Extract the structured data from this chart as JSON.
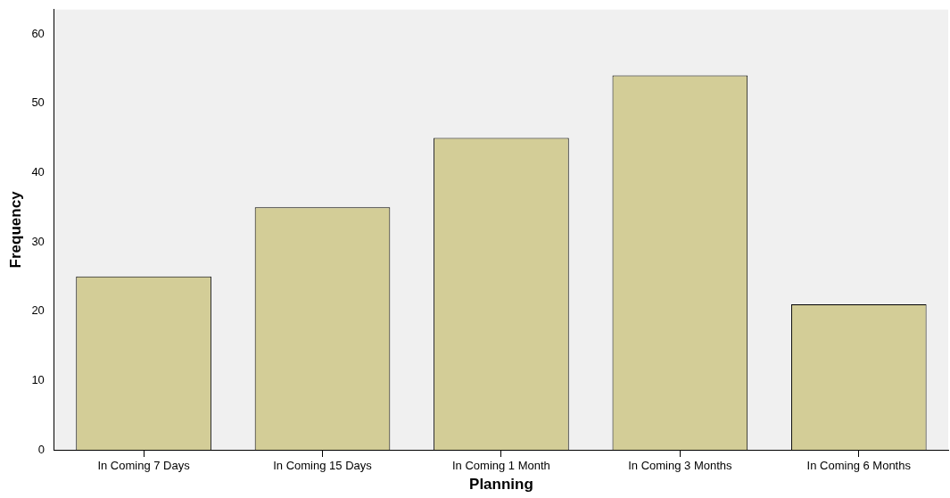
{
  "chart_data": {
    "type": "bar",
    "xlabel": "Planning",
    "ylabel": "Frequency",
    "categories": [
      "In Coming 7 Days",
      "In Coming 15 Days",
      "In Coming 1 Month",
      "In Coming 3 Months",
      "In Coming 6 Months"
    ],
    "values": [
      25,
      35,
      45,
      54,
      21
    ],
    "color": "#d3cd97",
    "ylim": [
      0,
      63.5
    ],
    "yticks": [
      0,
      10,
      20,
      30,
      40,
      50,
      60
    ],
    "grid": false,
    "legend": false
  }
}
